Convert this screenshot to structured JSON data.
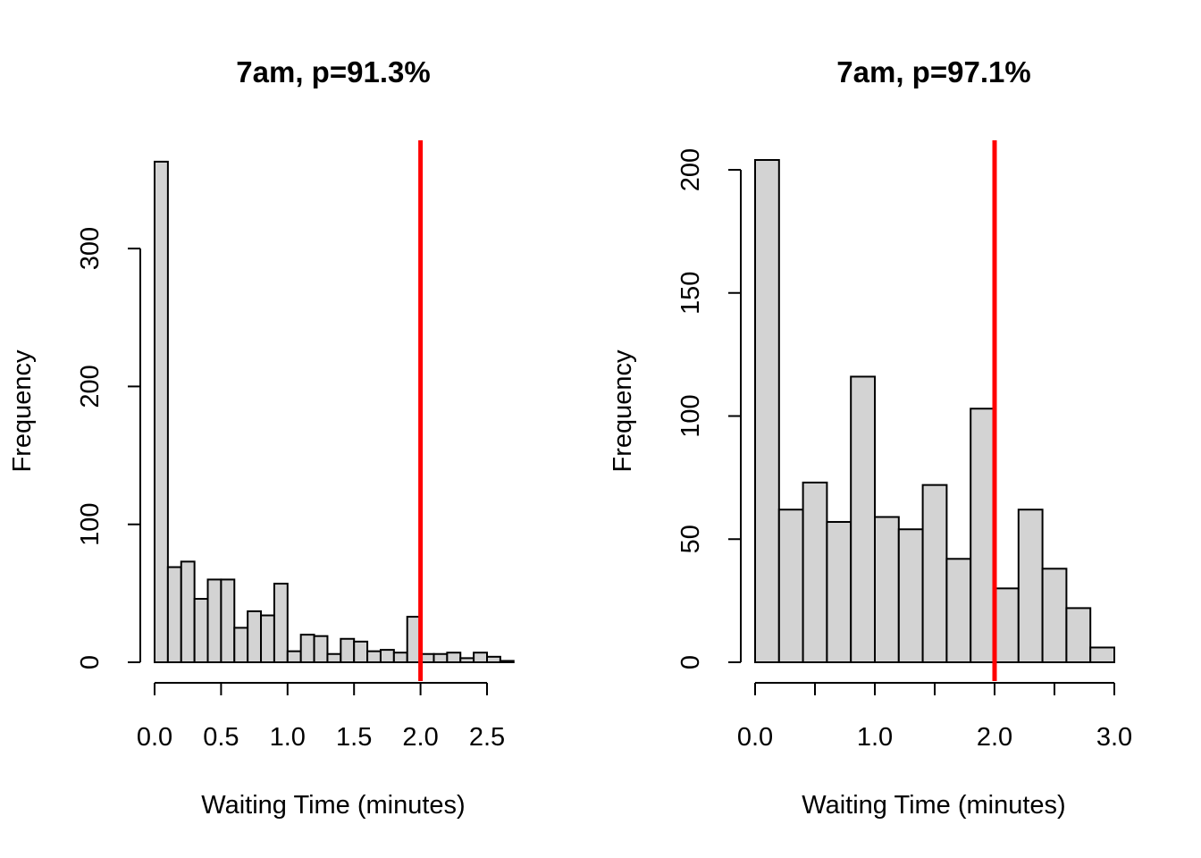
{
  "chart_data": [
    {
      "type": "bar",
      "title": "7am, p=91.3%",
      "xlabel": "Waiting Time (minutes)",
      "ylabel": "Frequency",
      "bin_start": 0.0,
      "bin_width": 0.1,
      "values": [
        363,
        69,
        73,
        46,
        60,
        60,
        25,
        37,
        34,
        57,
        8,
        20,
        19,
        6,
        17,
        15,
        8,
        9,
        7,
        33,
        6,
        6,
        7,
        3,
        7,
        4,
        1
      ],
      "xticks": [
        0.0,
        0.5,
        1.0,
        1.5,
        2.0,
        2.5
      ],
      "xtick_labels": [
        "0.0",
        "0.5",
        "1.0",
        "1.5",
        "2.0",
        "2.5"
      ],
      "yticks": [
        0,
        100,
        200,
        300
      ],
      "ytick_labels": [
        "0",
        "100",
        "200",
        "300"
      ],
      "vline": 2.0,
      "vline_color": "#ff0000",
      "bar_color": "#d3d3d3"
    },
    {
      "type": "bar",
      "title": "7am, p=97.1%",
      "xlabel": "Waiting Time (minutes)",
      "ylabel": "Frequency",
      "bin_start": 0.0,
      "bin_width": 0.2,
      "values": [
        204,
        62,
        73,
        57,
        116,
        59,
        54,
        72,
        42,
        103,
        30,
        62,
        38,
        22,
        6
      ],
      "xticks": [
        0.0,
        0.5,
        1.0,
        1.5,
        2.0,
        2.5,
        3.0
      ],
      "xtick_labels": [
        "0.0",
        "",
        "1.0",
        "",
        "2.0",
        "",
        "3.0"
      ],
      "yticks": [
        0,
        50,
        100,
        150,
        200
      ],
      "ytick_labels": [
        "0",
        "50",
        "100",
        "150",
        "200"
      ],
      "vline": 2.0,
      "vline_color": "#ff0000",
      "bar_color": "#d3d3d3"
    }
  ]
}
